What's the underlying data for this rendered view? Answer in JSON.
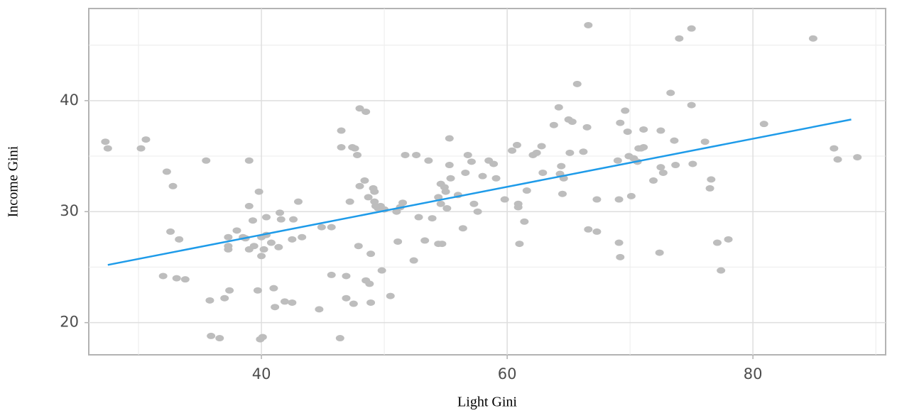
{
  "chart_data": {
    "type": "scatter",
    "x_label": "Light Gini",
    "y_label": "Income Gini",
    "xlim": [
      25.95,
      90.8
    ],
    "ylim": [
      17.1,
      48.3
    ],
    "xticks": [
      40,
      60,
      80
    ],
    "yticks": [
      20,
      30,
      40
    ],
    "x_minor_ticks": [
      30,
      50,
      70,
      90
    ],
    "y_minor_ticks": [
      25,
      35,
      45
    ],
    "grid": true,
    "color": "#bdbdbd",
    "x": [
      27.3,
      27.5,
      30.2,
      30.6,
      32.0,
      32.3,
      32.6,
      32.8,
      33.1,
      33.3,
      33.8,
      35.5,
      35.8,
      35.9,
      36.6,
      37.0,
      37.3,
      37.3,
      37.3,
      37.4,
      38.0,
      38.5,
      38.7,
      39.0,
      39.0,
      39.0,
      39.3,
      39.4,
      39.7,
      39.8,
      39.9,
      40.1,
      40.0,
      40.0,
      40.2,
      40.4,
      40.4,
      40.8,
      41.0,
      41.1,
      41.4,
      41.5,
      41.6,
      41.9,
      42.5,
      42.5,
      42.6,
      43.0,
      43.3,
      44.7,
      44.9,
      45.7,
      45.7,
      46.4,
      46.5,
      46.5,
      46.9,
      46.9,
      47.2,
      47.4,
      47.6,
      47.5,
      47.8,
      47.9,
      48.0,
      48.0,
      48.4,
      48.5,
      48.5,
      48.7,
      48.8,
      48.9,
      48.9,
      49.1,
      49.2,
      49.2,
      49.3,
      49.5,
      49.7,
      49.8,
      50.0,
      50.5,
      51.0,
      51.1,
      51.3,
      51.5,
      51.7,
      52.4,
      52.6,
      52.8,
      53.3,
      53.6,
      53.9,
      54.4,
      54.4,
      54.7,
      54.6,
      54.6,
      54.9,
      55.0,
      55.1,
      55.3,
      55.3,
      55.4,
      56.0,
      56.4,
      56.6,
      56.8,
      57.1,
      57.3,
      57.6,
      58.0,
      58.5,
      58.9,
      59.1,
      59.8,
      60.4,
      60.8,
      60.9,
      60.9,
      61.0,
      61.4,
      61.6,
      62.1,
      62.4,
      62.8,
      62.9,
      63.8,
      64.2,
      64.3,
      64.4,
      64.5,
      64.6,
      65.0,
      65.1,
      65.3,
      65.7,
      66.2,
      66.5,
      66.6,
      67.3,
      67.3,
      66.6,
      69.0,
      69.1,
      69.2,
      69.2,
      69.1,
      69.6,
      69.8,
      69.9,
      70.1,
      70.3,
      70.6,
      70.7,
      70.9,
      71.1,
      71.1,
      71.9,
      72.4,
      72.5,
      72.5,
      72.7,
      73.3,
      73.6,
      73.7,
      74.0,
      75.0,
      75.0,
      75.1,
      76.1,
      76.5,
      76.6,
      77.1,
      77.4,
      78.0,
      80.9,
      84.9,
      86.6,
      86.9,
      88.5
    ],
    "values": [
      36.3,
      35.7,
      35.7,
      36.5,
      24.2,
      33.6,
      28.2,
      32.3,
      24.0,
      27.5,
      23.9,
      34.6,
      22.0,
      18.8,
      18.6,
      22.2,
      27.7,
      26.9,
      26.6,
      22.9,
      28.3,
      27.7,
      27.6,
      30.5,
      34.6,
      26.6,
      29.2,
      26.9,
      22.9,
      31.8,
      18.5,
      18.7,
      27.7,
      26.0,
      26.6,
      27.9,
      29.5,
      27.2,
      23.1,
      21.4,
      26.8,
      29.9,
      29.3,
      21.9,
      27.5,
      21.8,
      29.3,
      30.9,
      27.7,
      21.2,
      28.6,
      28.6,
      24.3,
      18.6,
      37.3,
      35.8,
      24.2,
      22.2,
      30.9,
      35.8,
      35.7,
      21.7,
      35.1,
      26.9,
      32.3,
      39.3,
      32.8,
      39.0,
      23.8,
      31.3,
      23.5,
      21.8,
      26.2,
      32.1,
      30.9,
      31.8,
      30.5,
      30.3,
      30.5,
      24.7,
      30.2,
      22.4,
      30.0,
      27.3,
      30.4,
      30.8,
      35.1,
      25.6,
      35.1,
      29.5,
      27.4,
      34.6,
      29.4,
      31.3,
      27.1,
      27.1,
      30.7,
      32.5,
      32.2,
      31.8,
      30.3,
      36.6,
      34.2,
      33.0,
      31.5,
      28.5,
      33.5,
      35.1,
      34.5,
      30.7,
      30.0,
      33.2,
      34.6,
      34.3,
      33.0,
      31.1,
      35.5,
      36.0,
      30.7,
      30.4,
      27.1,
      29.1,
      31.9,
      35.1,
      35.3,
      35.9,
      33.5,
      37.8,
      39.4,
      33.4,
      34.1,
      31.6,
      33.0,
      38.3,
      35.3,
      38.1,
      41.5,
      35.4,
      37.6,
      28.4,
      31.1,
      28.2,
      46.8,
      34.6,
      27.2,
      38.0,
      25.9,
      31.1,
      39.1,
      37.2,
      35.0,
      31.4,
      34.8,
      34.5,
      35.7,
      35.7,
      35.8,
      37.4,
      32.8,
      26.3,
      37.3,
      34.0,
      33.5,
      40.7,
      36.4,
      34.2,
      45.6,
      46.5,
      39.6,
      34.3,
      36.3,
      32.1,
      32.9,
      27.2,
      24.7,
      27.5,
      37.9,
      45.6,
      35.7,
      34.7,
      34.9
    ],
    "fit": {
      "x": [
        27.5,
        88
      ],
      "values": [
        25.2,
        38.3
      ],
      "color": "#1e9be9"
    }
  }
}
